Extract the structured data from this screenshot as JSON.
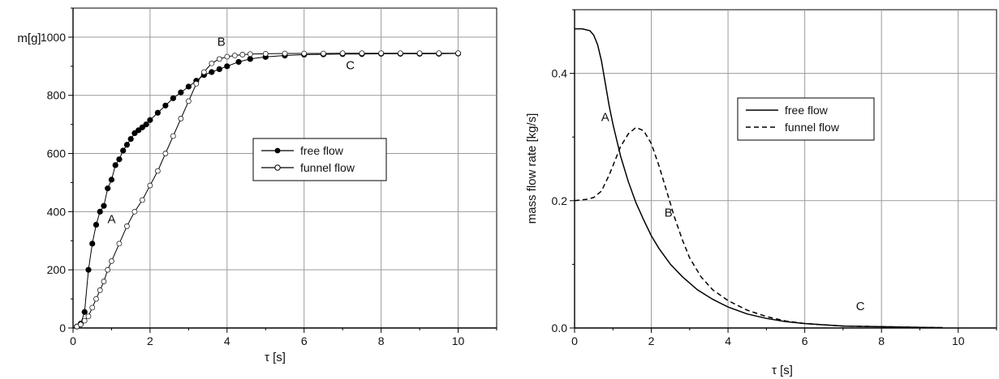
{
  "chart_data": [
    {
      "type": "scatter",
      "xlabel": "τ [s]",
      "ylabel": "m[g]",
      "xlim": [
        0,
        11
      ],
      "ylim": [
        0,
        1100
      ],
      "xticks": [
        0,
        2,
        4,
        6,
        8,
        10
      ],
      "yticks": [
        0,
        200,
        400,
        600,
        800,
        1000
      ],
      "grid": true,
      "legend_position": "center-right",
      "series": [
        {
          "name": "free flow",
          "marker": "filled-circle",
          "x": [
            0.1,
            0.2,
            0.3,
            0.4,
            0.5,
            0.6,
            0.7,
            0.8,
            0.9,
            1.0,
            1.1,
            1.2,
            1.3,
            1.4,
            1.5,
            1.6,
            1.7,
            1.8,
            1.9,
            2.0,
            2.2,
            2.4,
            2.6,
            2.8,
            3.0,
            3.2,
            3.4,
            3.6,
            3.8,
            4.0,
            4.3,
            4.6,
            5.0,
            5.5,
            6.0,
            6.5,
            7.0,
            7.5,
            8.0,
            8.5,
            9.0,
            9.5,
            10.0
          ],
          "y": [
            5,
            15,
            55,
            200,
            290,
            355,
            400,
            420,
            480,
            510,
            560,
            580,
            610,
            630,
            650,
            670,
            680,
            690,
            700,
            715,
            740,
            765,
            790,
            810,
            830,
            850,
            870,
            880,
            890,
            900,
            915,
            925,
            932,
            937,
            940,
            941,
            942,
            942,
            943,
            943,
            943,
            943,
            944
          ]
        },
        {
          "name": "funnel flow",
          "marker": "open-circle",
          "x": [
            0.1,
            0.2,
            0.3,
            0.4,
            0.5,
            0.6,
            0.7,
            0.8,
            0.9,
            1.0,
            1.2,
            1.4,
            1.6,
            1.8,
            2.0,
            2.2,
            2.4,
            2.6,
            2.8,
            3.0,
            3.2,
            3.4,
            3.6,
            3.8,
            4.0,
            4.2,
            4.4,
            4.6,
            5.0,
            5.5,
            6.0,
            6.5,
            7.0,
            7.5,
            8.0,
            8.5,
            9.0,
            9.5,
            10.0
          ],
          "y": [
            5,
            12,
            25,
            40,
            70,
            100,
            130,
            160,
            200,
            230,
            290,
            350,
            400,
            440,
            490,
            540,
            600,
            660,
            720,
            780,
            840,
            880,
            910,
            925,
            933,
            937,
            940,
            942,
            943,
            944,
            944,
            944,
            945,
            945,
            945,
            945,
            945,
            945,
            945
          ]
        }
      ],
      "annotations": [
        {
          "text": "A",
          "x": 1.0,
          "y": 360
        },
        {
          "text": "B",
          "x": 3.85,
          "y": 970
        },
        {
          "text": "C",
          "x": 7.2,
          "y": 890
        }
      ]
    },
    {
      "type": "line",
      "xlabel": "τ [s]",
      "ylabel": "mass flow rate [kg/s]",
      "xlim": [
        0,
        11
      ],
      "ylim": [
        0,
        0.5
      ],
      "xticks": [
        0,
        2,
        4,
        6,
        8,
        10
      ],
      "yticks": [
        0.0,
        0.2,
        0.4
      ],
      "ytick_labels": [
        "0.0",
        "0.2",
        "0.4"
      ],
      "grid": true,
      "legend_position": "upper-right",
      "series": [
        {
          "name": "free flow",
          "style": "solid",
          "x": [
            0,
            0.2,
            0.4,
            0.5,
            0.6,
            0.7,
            0.8,
            0.9,
            1.0,
            1.2,
            1.4,
            1.6,
            1.8,
            2.0,
            2.2,
            2.5,
            2.8,
            3.2,
            3.6,
            4.0,
            4.5,
            5.0,
            5.5,
            6.0,
            6.5,
            7.0,
            8.0,
            9.0,
            9.6
          ],
          "y": [
            0.47,
            0.47,
            0.467,
            0.46,
            0.445,
            0.42,
            0.385,
            0.35,
            0.32,
            0.27,
            0.23,
            0.197,
            0.17,
            0.145,
            0.125,
            0.1,
            0.081,
            0.06,
            0.045,
            0.033,
            0.022,
            0.015,
            0.01,
            0.007,
            0.005,
            0.003,
            0.002,
            0.001,
            0.0005
          ]
        },
        {
          "name": "funnel flow",
          "style": "dashed",
          "x": [
            0,
            0.3,
            0.5,
            0.7,
            0.9,
            1.0,
            1.2,
            1.4,
            1.6,
            1.8,
            2.0,
            2.2,
            2.4,
            2.6,
            2.8,
            3.0,
            3.3,
            3.6,
            4.0,
            4.5,
            5.0,
            5.5,
            6.0,
            6.5,
            7.0,
            8.0,
            9.0,
            9.6
          ],
          "y": [
            0.2,
            0.202,
            0.205,
            0.215,
            0.24,
            0.255,
            0.285,
            0.305,
            0.315,
            0.31,
            0.29,
            0.255,
            0.215,
            0.175,
            0.14,
            0.11,
            0.08,
            0.06,
            0.043,
            0.028,
            0.018,
            0.011,
            0.007,
            0.005,
            0.003,
            0.002,
            0.001,
            0.0005
          ]
        }
      ],
      "annotations": [
        {
          "text": "A",
          "x": 0.8,
          "y": 0.325
        },
        {
          "text": "B",
          "x": 2.45,
          "y": 0.175
        },
        {
          "text": "C",
          "x": 7.45,
          "y": 0.028
        }
      ]
    }
  ]
}
